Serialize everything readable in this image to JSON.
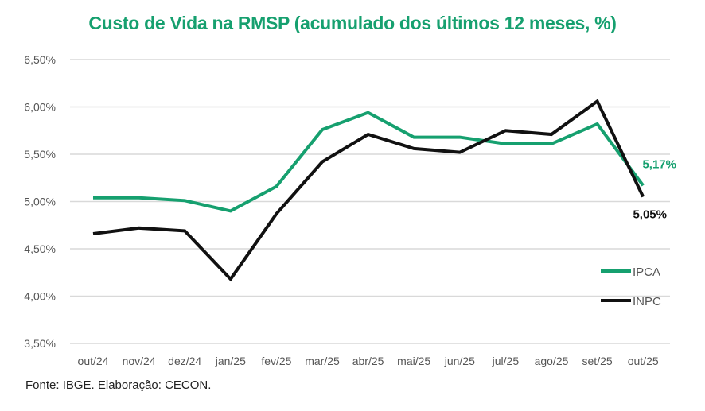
{
  "chart_data": {
    "type": "line",
    "title": "Custo de Vida na RMSP (acumulado dos últimos 12 meses, %)",
    "xlabel": "",
    "ylabel": "",
    "categories": [
      "out/24",
      "nov/24",
      "dez/24",
      "jan/25",
      "fev/25",
      "mar/25",
      "abr/25",
      "mai/25",
      "jun/25",
      "jul/25",
      "ago/25",
      "set/25",
      "out/25"
    ],
    "ylim": [
      3.5,
      6.5
    ],
    "yticks": [
      3.5,
      4.0,
      4.5,
      5.0,
      5.5,
      6.0,
      6.5
    ],
    "ytick_labels": [
      "3,50%",
      "4,00%",
      "4,50%",
      "5,00%",
      "5,50%",
      "6,00%",
      "6,50%"
    ],
    "grid": true,
    "legend_position": "bottom-right",
    "series": [
      {
        "name": "IPCA",
        "color": "#16a06f",
        "values": [
          5.04,
          5.04,
          5.01,
          4.9,
          5.16,
          5.76,
          5.94,
          5.68,
          5.68,
          5.61,
          5.61,
          5.82,
          5.17
        ],
        "end_label": "5,17%"
      },
      {
        "name": "INPC",
        "color": "#111111",
        "values": [
          4.66,
          4.72,
          4.69,
          4.18,
          4.87,
          5.42,
          5.71,
          5.56,
          5.52,
          5.75,
          5.71,
          6.06,
          5.05
        ],
        "end_label": "5,05%"
      }
    ]
  },
  "source": "Fonte: IBGE. Elaboração: CECON."
}
